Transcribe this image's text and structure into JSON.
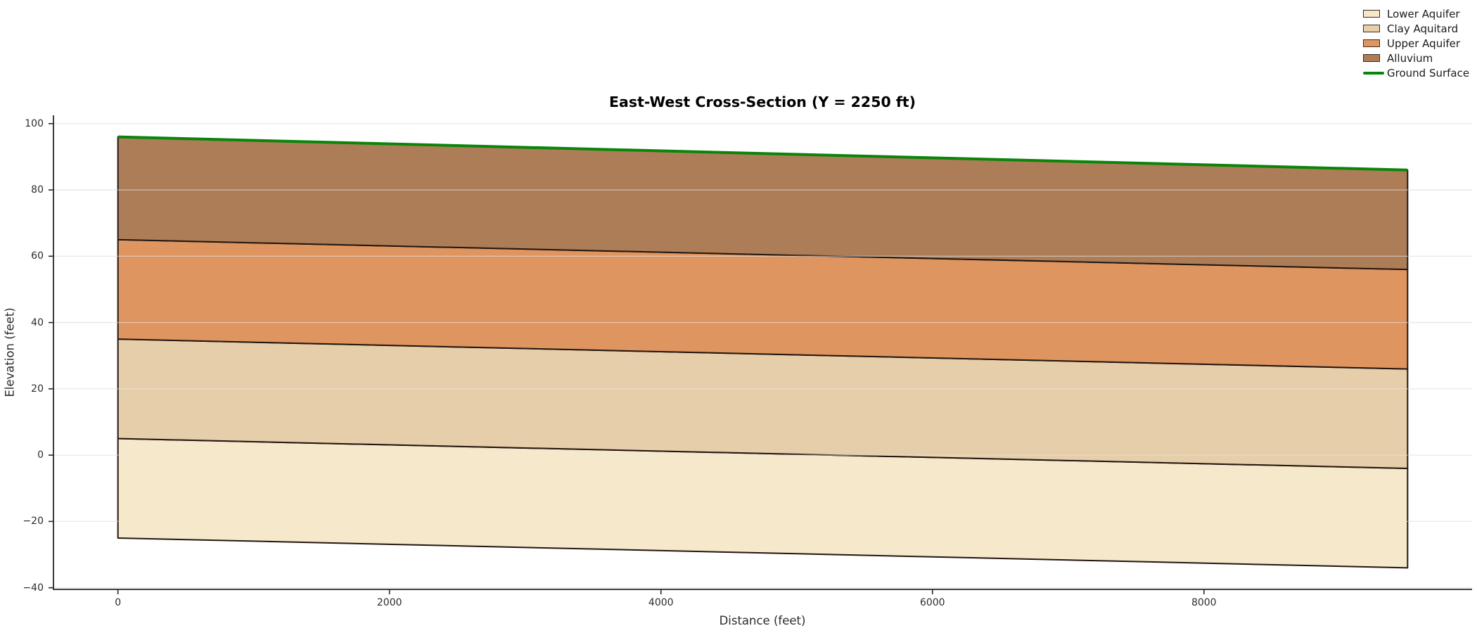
{
  "figure": {
    "background": "#ffffff"
  },
  "chart_data": {
    "type": "area",
    "title": "East-West Cross-Section (Y = 2250 ft)",
    "xlabel": "Distance (feet)",
    "ylabel": "Elevation (feet)",
    "x_range_feet": [
      0,
      9500
    ],
    "xlim": [
      -475,
      9975
    ],
    "ylim": [
      -40.5,
      102.5
    ],
    "xticks": [
      0,
      2000,
      4000,
      6000,
      8000
    ],
    "yticks": [
      100,
      80,
      60,
      40,
      20,
      0,
      -20,
      -40
    ],
    "grid": "horizontal-only",
    "legend_position": "upper-right-outside",
    "layers": [
      {
        "label": "Lower Aquifer",
        "fill": "#F5E8CB",
        "bottom_elevation": [
          -25,
          -34
        ],
        "top_elevation": [
          5,
          -4
        ]
      },
      {
        "label": "Clay Aquitard",
        "fill": "#E5CEA9",
        "bottom_elevation": [
          5,
          -4
        ],
        "top_elevation": [
          35,
          26
        ]
      },
      {
        "label": "Upper Aquifer",
        "fill": "#DE9560",
        "bottom_elevation": [
          35,
          26
        ],
        "top_elevation": [
          65,
          56
        ]
      },
      {
        "label": "Alluvium",
        "fill": "#AC7D57",
        "bottom_elevation": [
          65,
          56
        ],
        "top_elevation": [
          96,
          86
        ]
      }
    ],
    "line": {
      "label": "Ground Surface",
      "color": "#0a850a",
      "elevation": [
        96,
        86
      ]
    },
    "colors": {
      "layer_edge": "#231610",
      "grid": "#e9e9e9",
      "spine": "#262626",
      "tick_text": "#2b2b2b"
    }
  }
}
